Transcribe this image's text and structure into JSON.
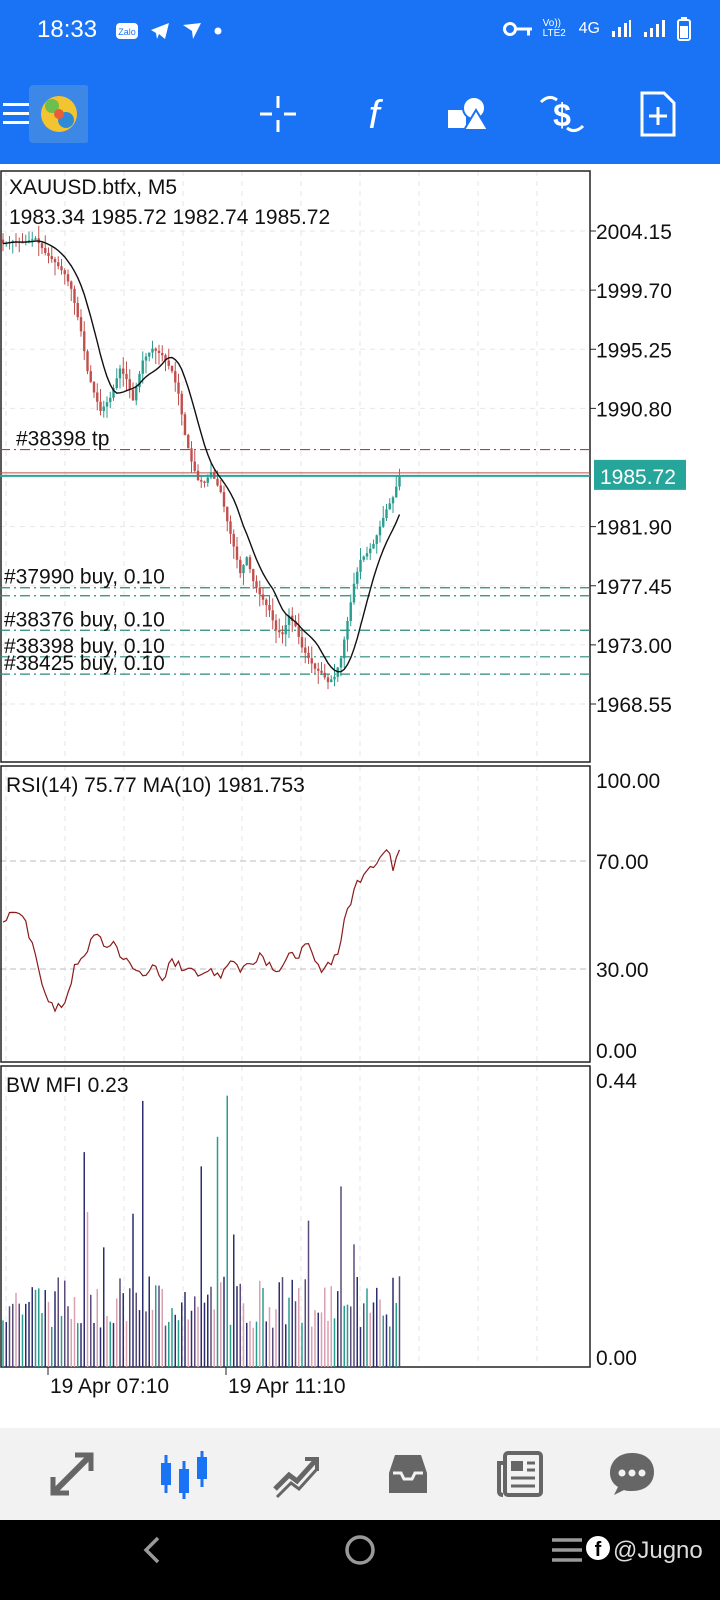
{
  "status_bar": {
    "time": "18:33",
    "app_icons": [
      "zalo-icon",
      "telegram-icon",
      "send-icon",
      "dot-icon"
    ],
    "right": {
      "network": "4G",
      "volte": "Vo)) LTE2",
      "icons": [
        "key-icon",
        "signal-icon",
        "signal-icon",
        "battery-icon"
      ]
    }
  },
  "toolbar": {
    "buttons": [
      {
        "name": "menu-icon"
      },
      {
        "name": "app-logo"
      },
      {
        "name": "crosshair-icon"
      },
      {
        "name": "indicators-icon",
        "glyph": "f"
      },
      {
        "name": "objects-icon"
      },
      {
        "name": "trade-icon"
      },
      {
        "name": "new-order-icon"
      }
    ]
  },
  "chart": {
    "symbol": "XAUUSD.btfx, M5",
    "ohlc": "1983.34 1985.72 1982.74 1985.72",
    "price_labels": [
      "2004.15",
      "1999.70",
      "1995.25",
      "1990.80",
      "1981.90",
      "1977.45",
      "1973.00",
      "1968.55"
    ],
    "current_price": "1985.72",
    "order_lines": [
      {
        "label": "#38398 tp",
        "price": 1987.7,
        "color": "#b0413e"
      },
      {
        "label": "#37990 buy, 0.10",
        "price": 1977.3,
        "color": "#2a8a78"
      },
      {
        "label": "",
        "price": 1976.7,
        "color": "#2a8a78"
      },
      {
        "label": "#38376 buy, 0.10",
        "price": 1974.1,
        "color": "#2a8a78"
      },
      {
        "label": "#38398 buy, 0.10",
        "price": 1972.1,
        "color": "#2a8a78"
      },
      {
        "label": "#38425 buy, 0.10",
        "price": 1970.8,
        "color": "#2a8a78"
      }
    ],
    "time_labels": [
      "19 Apr 07:10",
      "19 Apr 11:10"
    ]
  },
  "rsi": {
    "label": "RSI(14) 75.77 MA(10) 1981.753",
    "levels": [
      "100.00",
      "70.00",
      "30.00",
      "0.00"
    ]
  },
  "mfi": {
    "label": "BW MFI 0.23",
    "levels": [
      "0.44",
      "0.00"
    ]
  },
  "bottom_nav": [
    {
      "name": "quotes-icon",
      "active": false
    },
    {
      "name": "chart-icon",
      "active": true
    },
    {
      "name": "trade-icon",
      "active": false
    },
    {
      "name": "history-icon",
      "active": false
    },
    {
      "name": "news-icon",
      "active": false
    },
    {
      "name": "messages-icon",
      "active": false
    }
  ],
  "watermark": "@Jugno",
  "colors": {
    "header": "#1a73f5",
    "bear": "#c0504d",
    "bull": "#2a9d8f",
    "price_tag": "#26a69a",
    "active_nav": "#1a73f5"
  }
}
